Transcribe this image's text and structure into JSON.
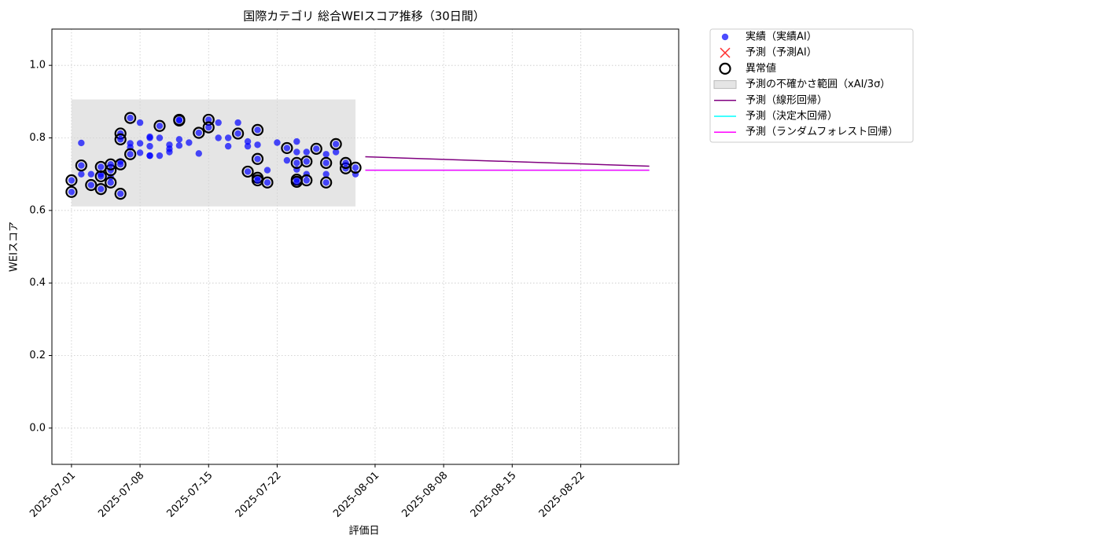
{
  "chart_data": {
    "type": "scatter",
    "title": "国際カテゴリ 総合WEIスコア推移（30日間）",
    "x_label": "評価日",
    "y_label": "WEIスコア",
    "xlim": [
      "2025-06-29",
      "2025-09-01"
    ],
    "xticks": [
      "2025-07-01",
      "2025-07-08",
      "2025-07-15",
      "2025-07-22",
      "2025-08-01",
      "2025-08-08",
      "2025-08-15",
      "2025-08-22"
    ],
    "ylim": [
      -0.1,
      1.1
    ],
    "yticks": [
      {
        "value": 0,
        "label": "0.0"
      },
      0.2,
      0.4,
      0.6,
      0.8,
      {
        "value": 1,
        "label": "1.0"
      }
    ],
    "grid": true,
    "legend": "outside upper right",
    "series": [
      {
        "name": "実績（実績AI）",
        "marker": "dot",
        "color": "#0000ff",
        "x": [
          "2025-07-02",
          "2025-07-02",
          "2025-07-03",
          "2025-07-04",
          "2025-07-05",
          "2025-07-06",
          "2025-07-07",
          "2025-07-07",
          "2025-07-08",
          "2025-07-08",
          "2025-07-08",
          "2025-07-09",
          "2025-07-09",
          "2025-07-09",
          "2025-07-09",
          "2025-07-09",
          "2025-07-10",
          "2025-07-10",
          "2025-07-11",
          "2025-07-11",
          "2025-07-11",
          "2025-07-12",
          "2025-07-12",
          "2025-07-13",
          "2025-07-14",
          "2025-07-16",
          "2025-07-16",
          "2025-07-17",
          "2025-07-17",
          "2025-07-18",
          "2025-07-19",
          "2025-07-19",
          "2025-07-20",
          "2025-07-21",
          "2025-07-22",
          "2025-07-23",
          "2025-07-24",
          "2025-07-24",
          "2025-07-24",
          "2025-07-25",
          "2025-07-25",
          "2025-07-27",
          "2025-07-27",
          "2025-07-28",
          "2025-07-30"
        ],
        "values": [
          0.786,
          0.7,
          0.7,
          0.7,
          0.692,
          0.735,
          0.785,
          0.774,
          0.785,
          0.759,
          0.842,
          0.803,
          0.751,
          0.777,
          0.751,
          0.8,
          0.8,
          0.751,
          0.781,
          0.77,
          0.761,
          0.796,
          0.779,
          0.787,
          0.757,
          0.8,
          0.842,
          0.8,
          0.777,
          0.842,
          0.777,
          0.79,
          0.781,
          0.711,
          0.787,
          0.738,
          0.79,
          0.761,
          0.713,
          0.761,
          0.7,
          0.7,
          0.755,
          0.761,
          0.7
        ]
      },
      {
        "name": "予測（予測AI）",
        "marker": "x",
        "color": "#ff0000",
        "x": [],
        "values": []
      },
      {
        "name": "異常値",
        "marker": "ring",
        "color": "#000000",
        "fill": "#0000ff",
        "x": [
          "2025-07-01",
          "2025-07-01",
          "2025-07-02",
          "2025-07-03",
          "2025-07-04",
          "2025-07-04",
          "2025-07-04",
          "2025-07-05",
          "2025-07-05",
          "2025-07-05",
          "2025-07-06",
          "2025-07-06",
          "2025-07-06",
          "2025-07-06",
          "2025-07-07",
          "2025-07-07",
          "2025-07-10",
          "2025-07-12",
          "2025-07-12",
          "2025-07-14",
          "2025-07-15",
          "2025-07-15",
          "2025-07-18",
          "2025-07-20",
          "2025-07-20",
          "2025-07-19",
          "2025-07-20",
          "2025-07-20",
          "2025-07-21",
          "2025-07-23",
          "2025-07-24",
          "2025-07-24",
          "2025-07-24",
          "2025-07-25",
          "2025-07-25",
          "2025-07-26",
          "2025-07-27",
          "2025-07-27",
          "2025-07-28",
          "2025-07-29",
          "2025-07-29",
          "2025-07-30"
        ],
        "values": [
          0.651,
          0.683,
          0.724,
          0.67,
          0.72,
          0.659,
          0.694,
          0.711,
          0.727,
          0.677,
          0.727,
          0.646,
          0.812,
          0.796,
          0.855,
          0.755,
          0.833,
          0.848,
          0.85,
          0.814,
          0.85,
          0.829,
          0.812,
          0.822,
          0.742,
          0.707,
          0.69,
          0.683,
          0.677,
          0.772,
          0.731,
          0.685,
          0.679,
          0.683,
          0.735,
          0.77,
          0.677,
          0.731,
          0.783,
          0.716,
          0.731,
          0.718
        ]
      },
      {
        "name": "予測の不確かさ範囲（xAI/3σ）",
        "marker": "band",
        "color": "#d3d3d3",
        "x": [
          "2025-07-01",
          "2025-07-30"
        ],
        "lower": [
          0.611,
          0.611
        ],
        "upper": [
          0.906,
          0.906
        ]
      },
      {
        "name": "予測（線形回帰）",
        "marker": "line",
        "color": "#800080",
        "x": [
          "2025-07-31",
          "2025-08-29"
        ],
        "values": [
          0.748,
          0.722
        ]
      },
      {
        "name": "予測（決定木回帰）",
        "marker": "line",
        "color": "#00ffff",
        "x": [
          "2025-07-31",
          "2025-08-29"
        ],
        "values": [
          0.711,
          0.711
        ]
      },
      {
        "name": "予測（ランダムフォレスト回帰）",
        "marker": "line",
        "color": "#ff00ff",
        "x": [
          "2025-07-31",
          "2025-08-29"
        ],
        "values": [
          0.711,
          0.711
        ]
      }
    ]
  }
}
